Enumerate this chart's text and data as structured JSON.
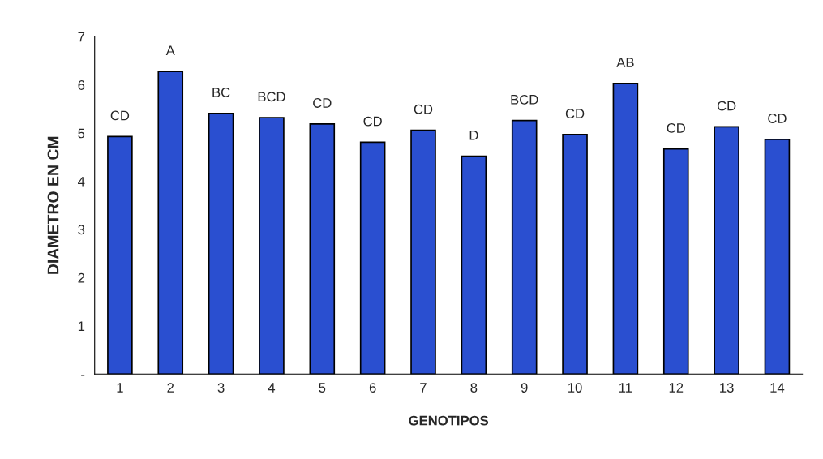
{
  "chart_data": {
    "type": "bar",
    "xlabel": "GENOTIPOS",
    "ylabel": "DIAMETRO EN CM",
    "categories": [
      "1",
      "2",
      "3",
      "4",
      "5",
      "6",
      "7",
      "8",
      "9",
      "10",
      "11",
      "12",
      "13",
      "14"
    ],
    "values": [
      4.93,
      6.28,
      5.41,
      5.32,
      5.19,
      4.81,
      5.06,
      4.52,
      5.26,
      4.97,
      6.03,
      4.67,
      5.13,
      4.87
    ],
    "color": "#2a4fd0",
    "ylim": [
      0,
      7
    ],
    "yticks": [
      {
        "value": 0,
        "label": "-"
      },
      1,
      2,
      3,
      4,
      5,
      6,
      7
    ],
    "grid": false,
    "annotations": [
      {
        "text": "CD",
        "x": "1",
        "y": 4.93
      },
      {
        "text": "A",
        "x": "2",
        "y": 6.28
      },
      {
        "text": "BC",
        "x": "3",
        "y": 5.41
      },
      {
        "text": "BCD",
        "x": "4",
        "y": 5.32
      },
      {
        "text": "CD",
        "x": "5",
        "y": 5.19
      },
      {
        "text": "CD",
        "x": "6",
        "y": 4.81
      },
      {
        "text": "CD",
        "x": "7",
        "y": 5.06
      },
      {
        "text": "D",
        "x": "8",
        "y": 4.52
      },
      {
        "text": "BCD",
        "x": "9",
        "y": 5.26
      },
      {
        "text": "CD",
        "x": "10",
        "y": 4.97
      },
      {
        "text": "AB",
        "x": "11",
        "y": 6.03
      },
      {
        "text": "CD",
        "x": "12",
        "y": 4.67
      },
      {
        "text": "CD",
        "x": "13",
        "y": 5.13
      },
      {
        "text": "CD",
        "x": "14",
        "y": 4.87
      }
    ]
  }
}
